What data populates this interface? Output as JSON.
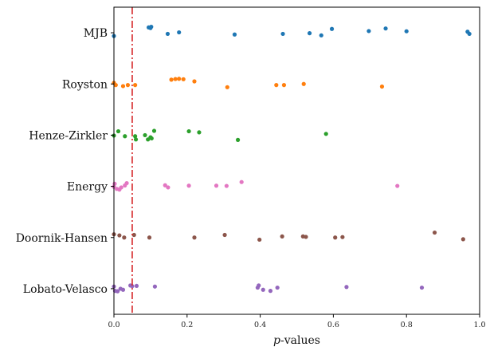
{
  "chart_data": {
    "type": "scatter",
    "title": "",
    "xlabel": "p-values",
    "xlabel_italic_part": "p",
    "xlabel_rest": "-values",
    "ylabel": "",
    "xlim": [
      0,
      1
    ],
    "xticks": [
      0,
      0.2,
      0.4,
      0.6,
      0.8,
      1
    ],
    "xtick_labels": [
      "0.0",
      "0.2",
      "0.4",
      "0.6",
      "0.8",
      "1.0"
    ],
    "grid": false,
    "legend": "none",
    "threshold": {
      "x": 0.05,
      "color": "#d62728",
      "style": "dash-dot"
    },
    "categories": [
      "MJB",
      "Royston",
      "Henze-Zirkler",
      "Energy",
      "Doornik-Hansen",
      "Lobato-Velasco"
    ],
    "series": [
      {
        "name": "MJB",
        "color": "#1f77b4",
        "points": [
          [
            0.0,
            -0.15
          ],
          [
            0.095,
            0.25
          ],
          [
            0.1,
            0.22
          ],
          [
            0.102,
            0.28
          ],
          [
            0.147,
            -0.05
          ],
          [
            0.178,
            0.02
          ],
          [
            0.33,
            -0.08
          ],
          [
            0.462,
            -0.05
          ],
          [
            0.535,
            -0.02
          ],
          [
            0.567,
            -0.12
          ],
          [
            0.596,
            0.18
          ],
          [
            0.697,
            0.08
          ],
          [
            0.743,
            0.2
          ],
          [
            0.8,
            0.07
          ],
          [
            0.967,
            0.05
          ],
          [
            0.972,
            -0.05
          ]
        ]
      },
      {
        "name": "Royston",
        "color": "#ff7f0e",
        "points": [
          [
            0.0,
            0.05
          ],
          [
            0.005,
            -0.05
          ],
          [
            0.025,
            -0.1
          ],
          [
            0.038,
            -0.05
          ],
          [
            0.058,
            -0.05
          ],
          [
            0.157,
            0.2
          ],
          [
            0.168,
            0.23
          ],
          [
            0.178,
            0.24
          ],
          [
            0.19,
            0.22
          ],
          [
            0.22,
            0.12
          ],
          [
            0.31,
            -0.15
          ],
          [
            0.444,
            -0.05
          ],
          [
            0.465,
            -0.05
          ],
          [
            0.519,
            0.0
          ],
          [
            0.733,
            -0.12
          ]
        ]
      },
      {
        "name": "Henze-Zirkler",
        "color": "#2ca02c",
        "points": [
          [
            0.0,
            -0.02
          ],
          [
            0.012,
            0.18
          ],
          [
            0.03,
            -0.05
          ],
          [
            0.058,
            -0.05
          ],
          [
            0.06,
            -0.2
          ],
          [
            0.085,
            0.0
          ],
          [
            0.093,
            -0.2
          ],
          [
            0.1,
            -0.1
          ],
          [
            0.103,
            -0.15
          ],
          [
            0.11,
            0.2
          ],
          [
            0.205,
            0.18
          ],
          [
            0.233,
            0.13
          ],
          [
            0.339,
            -0.22
          ],
          [
            0.58,
            0.06
          ]
        ]
      },
      {
        "name": "Energy",
        "color": "#e377c2",
        "points": [
          [
            0.0,
            -0.02
          ],
          [
            0.002,
            0.12
          ],
          [
            0.008,
            -0.12
          ],
          [
            0.015,
            -0.15
          ],
          [
            0.02,
            -0.05
          ],
          [
            0.03,
            0.04
          ],
          [
            0.035,
            0.15
          ],
          [
            0.14,
            0.05
          ],
          [
            0.148,
            -0.05
          ],
          [
            0.205,
            0.03
          ],
          [
            0.28,
            0.03
          ],
          [
            0.308,
            0.02
          ],
          [
            0.349,
            0.2
          ],
          [
            0.775,
            0.02
          ]
        ]
      },
      {
        "name": "Doornik-Hansen",
        "color": "#8c564b",
        "points": [
          [
            0.0,
            0.15
          ],
          [
            0.015,
            0.1
          ],
          [
            0.028,
            0.0
          ],
          [
            0.055,
            0.12
          ],
          [
            0.097,
            0.0
          ],
          [
            0.22,
            0.0
          ],
          [
            0.303,
            0.12
          ],
          [
            0.398,
            -0.1
          ],
          [
            0.46,
            0.05
          ],
          [
            0.517,
            0.05
          ],
          [
            0.525,
            0.03
          ],
          [
            0.605,
            0.0
          ],
          [
            0.625,
            0.02
          ],
          [
            0.877,
            0.23
          ],
          [
            0.955,
            -0.08
          ]
        ]
      },
      {
        "name": "Lobato-Velasco",
        "color": "#9467bd",
        "points": [
          [
            0.0,
            0.1
          ],
          [
            0.003,
            -0.1
          ],
          [
            0.01,
            -0.12
          ],
          [
            0.018,
            0.0
          ],
          [
            0.025,
            -0.05
          ],
          [
            0.045,
            0.15
          ],
          [
            0.05,
            0.12
          ],
          [
            0.062,
            0.13
          ],
          [
            0.112,
            0.1
          ],
          [
            0.393,
            0.05
          ],
          [
            0.396,
            0.15
          ],
          [
            0.408,
            -0.05
          ],
          [
            0.428,
            -0.1
          ],
          [
            0.447,
            0.05
          ],
          [
            0.636,
            0.08
          ],
          [
            0.842,
            0.05
          ]
        ]
      }
    ]
  }
}
